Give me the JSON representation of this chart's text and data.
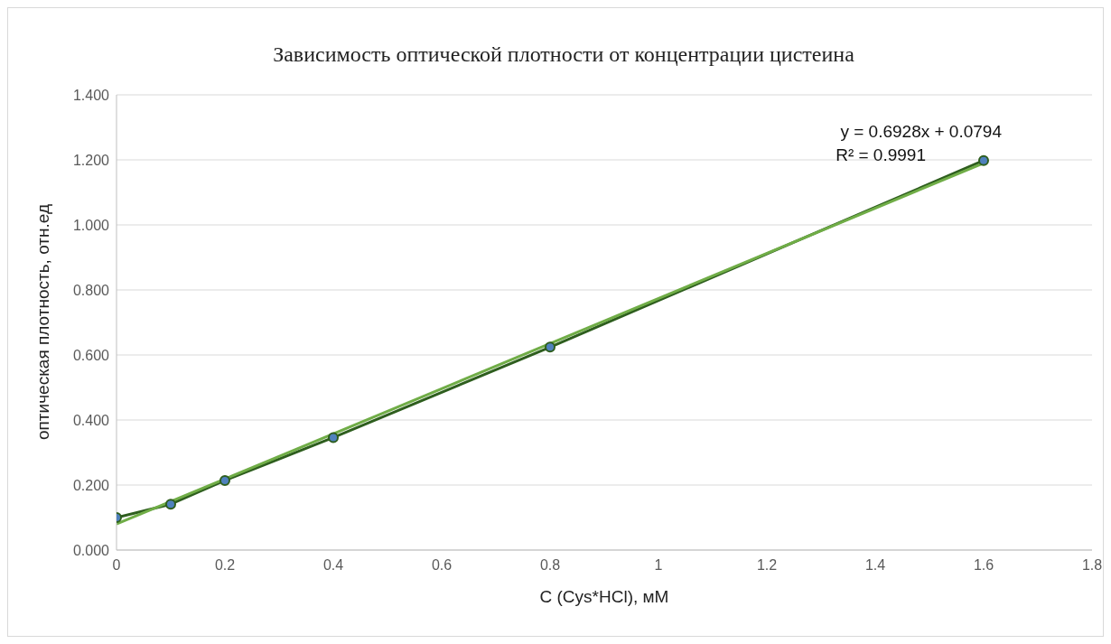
{
  "chart_data": {
    "type": "line",
    "title": "Зависимость оптической плотности от концентрации цистеина",
    "xlabel": "C (Cys*HCl), мМ",
    "ylabel": "оптическая плотность, отн.ед",
    "x": [
      0,
      0.1,
      0.2,
      0.4,
      0.8,
      1.6
    ],
    "series": [
      {
        "color": "#2e5e1e",
        "marker": "circle",
        "values": [
          0.1,
          0.141,
          0.214,
          0.346,
          0.624,
          1.198
        ]
      },
      {
        "color": "#70ad47",
        "marker": "none",
        "x": [
          0,
          1.6
        ],
        "values": [
          0.08,
          1.19
        ]
      }
    ],
    "xlim": [
      0,
      1.8
    ],
    "xticks": [
      0,
      0.2,
      0.4,
      0.6,
      0.8,
      1,
      1.2,
      1.4,
      1.6,
      1.8
    ],
    "ylim": [
      0,
      1.4
    ],
    "yticks": [
      {
        "value": 0,
        "label": "0.000"
      },
      {
        "value": 0.2,
        "label": "0.200"
      },
      {
        "value": 0.4,
        "label": "0.400"
      },
      {
        "value": 0.6,
        "label": "0.600"
      },
      {
        "value": 0.8,
        "label": "0.800"
      },
      {
        "value": 1,
        "label": "1.000"
      },
      {
        "value": 1.2,
        "label": "1.200"
      },
      {
        "value": 1.4,
        "label": "1.400"
      }
    ],
    "grid": "y",
    "annotations": [
      "y = 0.6928x + 0.0794",
      "R² = 0.9991"
    ]
  }
}
